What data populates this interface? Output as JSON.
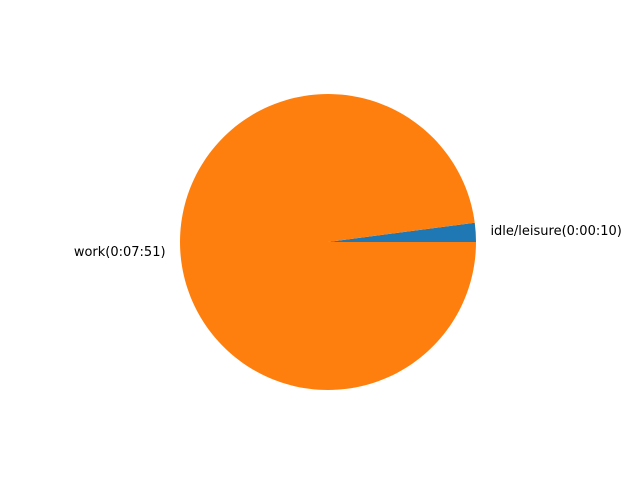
{
  "chart_data": {
    "type": "pie",
    "title": "",
    "start_angle_deg": 0,
    "direction": "counterclockwise",
    "slices": [
      {
        "label": "idle/leisure(0:00:10)",
        "value": 10,
        "color": "#1f77b4"
      },
      {
        "label": "work(0:07:51)",
        "value": 471,
        "color": "#ff7f0e"
      }
    ]
  }
}
